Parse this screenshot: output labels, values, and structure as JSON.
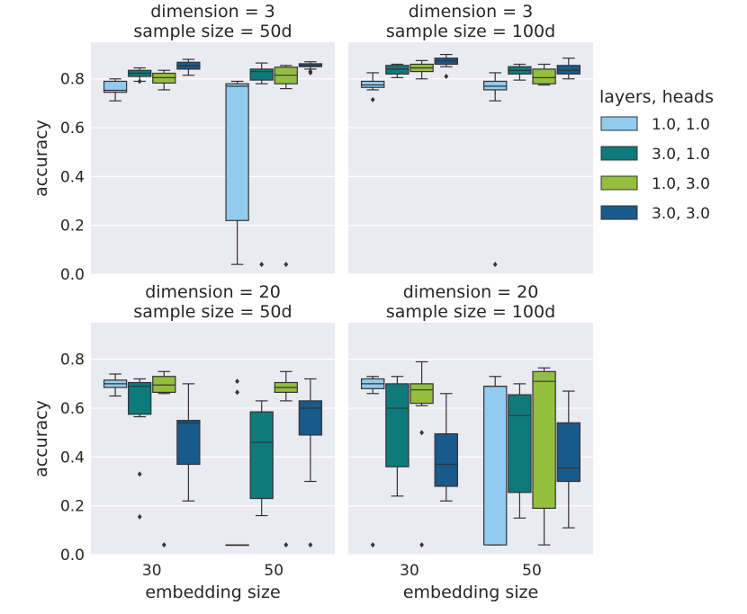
{
  "chart_data": {
    "type": "boxplot",
    "ylabel": "accuracy",
    "xlabel": "embedding size",
    "ylim": [
      0.0,
      0.95
    ],
    "yticks": [
      "0.0",
      "0.2",
      "0.4",
      "0.6",
      "0.8"
    ],
    "categories": [
      "30",
      "50"
    ],
    "legend": {
      "title": "layers, heads",
      "placement": "right",
      "entries": [
        {
          "label": "1.0, 1.0",
          "color": "#92cbef"
        },
        {
          "label": "3.0, 1.0",
          "color": "#0f7a7a"
        },
        {
          "label": "1.0, 3.0",
          "color": "#93bf3c"
        },
        {
          "label": "3.0, 3.0",
          "color": "#195a8c"
        }
      ]
    },
    "panels": [
      {
        "title_line1": "dimension = 3",
        "title_line2": "sample size = 50d",
        "groups": [
          [
            {
              "q1": 0.745,
              "median": 0.753,
              "q3": 0.79,
              "whislo": 0.71,
              "whishi": 0.8,
              "fliers": []
            },
            {
              "q1": 0.81,
              "median": 0.823,
              "q3": 0.835,
              "whislo": 0.79,
              "whishi": 0.845,
              "fliers": [
                0.79
              ]
            },
            {
              "q1": 0.783,
              "median": 0.805,
              "q3": 0.823,
              "whislo": 0.755,
              "whishi": 0.835,
              "fliers": []
            },
            {
              "q1": 0.84,
              "median": 0.853,
              "q3": 0.868,
              "whislo": 0.815,
              "whishi": 0.88,
              "fliers": []
            }
          ],
          [
            {
              "q1": 0.22,
              "median": 0.77,
              "q3": 0.78,
              "whislo": 0.04,
              "whishi": 0.79,
              "fliers": []
            },
            {
              "q1": 0.795,
              "median": 0.83,
              "q3": 0.84,
              "whislo": 0.78,
              "whishi": 0.865,
              "fliers": [
                0.04
              ]
            },
            {
              "q1": 0.78,
              "median": 0.815,
              "q3": 0.848,
              "whislo": 0.76,
              "whishi": 0.855,
              "fliers": [
                0.04
              ]
            },
            {
              "q1": 0.85,
              "median": 0.855,
              "q3": 0.862,
              "whislo": 0.84,
              "whishi": 0.87,
              "fliers": [
                0.83,
                0.825
              ]
            }
          ]
        ]
      },
      {
        "title_line1": "dimension = 3",
        "title_line2": "sample size = 100d",
        "groups": [
          [
            {
              "q1": 0.765,
              "median": 0.775,
              "q3": 0.79,
              "whislo": 0.755,
              "whishi": 0.825,
              "fliers": [
                0.715
              ]
            },
            {
              "q1": 0.82,
              "median": 0.84,
              "q3": 0.855,
              "whislo": 0.805,
              "whishi": 0.86,
              "fliers": []
            },
            {
              "q1": 0.83,
              "median": 0.845,
              "q3": 0.86,
              "whislo": 0.8,
              "whishi": 0.875,
              "fliers": []
            },
            {
              "q1": 0.86,
              "median": 0.873,
              "q3": 0.885,
              "whislo": 0.85,
              "whishi": 0.9,
              "fliers": [
                0.81
              ]
            }
          ],
          [
            {
              "q1": 0.755,
              "median": 0.77,
              "q3": 0.79,
              "whislo": 0.71,
              "whishi": 0.825,
              "fliers": [
                0.04
              ]
            },
            {
              "q1": 0.82,
              "median": 0.835,
              "q3": 0.85,
              "whislo": 0.795,
              "whishi": 0.86,
              "fliers": []
            },
            {
              "q1": 0.78,
              "median": 0.805,
              "q3": 0.84,
              "whislo": 0.775,
              "whishi": 0.86,
              "fliers": []
            },
            {
              "q1": 0.82,
              "median": 0.835,
              "q3": 0.855,
              "whislo": 0.8,
              "whishi": 0.885,
              "fliers": []
            }
          ]
        ]
      },
      {
        "title_line1": "dimension = 20",
        "title_line2": "sample size = 50d",
        "groups": [
          [
            {
              "q1": 0.685,
              "median": 0.7,
              "q3": 0.715,
              "whislo": 0.65,
              "whishi": 0.74,
              "fliers": []
            },
            {
              "q1": 0.575,
              "median": 0.69,
              "q3": 0.705,
              "whislo": 0.565,
              "whishi": 0.72,
              "fliers": [
                0.33,
                0.155
              ]
            },
            {
              "q1": 0.665,
              "median": 0.695,
              "q3": 0.73,
              "whislo": 0.66,
              "whishi": 0.75,
              "fliers": [
                0.04
              ]
            },
            {
              "q1": 0.37,
              "median": 0.54,
              "q3": 0.55,
              "whislo": 0.22,
              "whishi": 0.7,
              "fliers": []
            }
          ],
          [
            {
              "q1": 0.04,
              "median": 0.04,
              "q3": 0.04,
              "whislo": 0.04,
              "whishi": 0.04,
              "fliers": [
                0.71,
                0.665
              ]
            },
            {
              "q1": 0.23,
              "median": 0.46,
              "q3": 0.585,
              "whislo": 0.16,
              "whishi": 0.63,
              "fliers": []
            },
            {
              "q1": 0.665,
              "median": 0.685,
              "q3": 0.705,
              "whislo": 0.63,
              "whishi": 0.75,
              "fliers": [
                0.04
              ]
            },
            {
              "q1": 0.49,
              "median": 0.6,
              "q3": 0.63,
              "whislo": 0.3,
              "whishi": 0.72,
              "fliers": [
                0.04
              ]
            }
          ]
        ]
      },
      {
        "title_line1": "dimension = 20",
        "title_line2": "sample size = 100d",
        "groups": [
          [
            {
              "q1": 0.68,
              "median": 0.7,
              "q3": 0.72,
              "whislo": 0.66,
              "whishi": 0.73,
              "fliers": [
                0.04
              ]
            },
            {
              "q1": 0.36,
              "median": 0.6,
              "q3": 0.7,
              "whislo": 0.24,
              "whishi": 0.73,
              "fliers": []
            },
            {
              "q1": 0.62,
              "median": 0.675,
              "q3": 0.7,
              "whislo": 0.61,
              "whishi": 0.79,
              "fliers": [
                0.5,
                0.04
              ]
            },
            {
              "q1": 0.28,
              "median": 0.37,
              "q3": 0.495,
              "whislo": 0.22,
              "whishi": 0.66,
              "fliers": []
            }
          ],
          [
            {
              "q1": 0.04,
              "median": 0.69,
              "q3": 0.69,
              "whislo": 0.04,
              "whishi": 0.73,
              "fliers": []
            },
            {
              "q1": 0.255,
              "median": 0.57,
              "q3": 0.655,
              "whislo": 0.15,
              "whishi": 0.7,
              "fliers": []
            },
            {
              "q1": 0.19,
              "median": 0.71,
              "q3": 0.75,
              "whislo": 0.04,
              "whishi": 0.765,
              "fliers": []
            },
            {
              "q1": 0.3,
              "median": 0.355,
              "q3": 0.54,
              "whislo": 0.11,
              "whishi": 0.67,
              "fliers": []
            }
          ]
        ]
      }
    ]
  }
}
